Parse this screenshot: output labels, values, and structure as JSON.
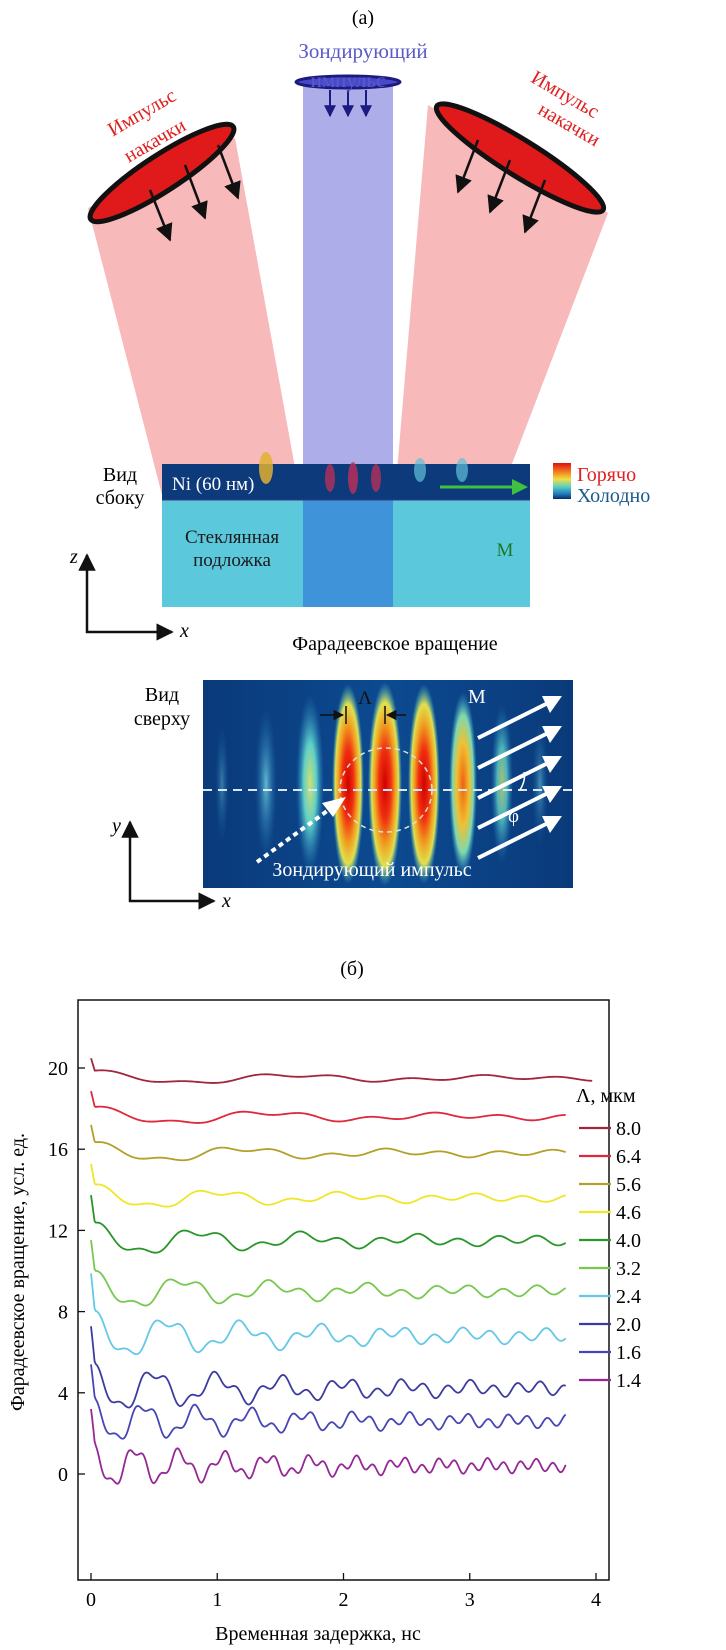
{
  "panel_a": {
    "label": "(а)",
    "probe_pulse": [
      "Зондирующий",
      "импульс"
    ],
    "pump_pulse": [
      "Импульс",
      "накачки"
    ],
    "side_view": [
      "Вид",
      "сбоку"
    ],
    "ni_layer": "Ni (60 нм)",
    "substrate": [
      "Стеклянная",
      "подложка"
    ],
    "m_label": "M",
    "legend_hot": "Горячо",
    "legend_cold": "Холодно",
    "axis_z": "z",
    "axis_x": "x",
    "faraday": "Фарадеевское вращение",
    "top_view": [
      "Вид",
      "сверху"
    ],
    "lambda": "Λ",
    "m_top": "M",
    "phi": "φ",
    "probe_bottom": "Зондирующий импульс",
    "axis_y": "y",
    "axis_x2": "x",
    "colors": {
      "pump": "#f08080",
      "probe": "#7070d0",
      "hot": "#ff2020",
      "cold": "#0a3a8a",
      "substrate": "#5cc8dc"
    }
  },
  "panel_b": {
    "label": "(б)",
    "ylabel": "Фарадеевское вращение, усл. ед.",
    "xlabel": "Временная задержка, нс",
    "legend_title": "Λ, мкм"
  },
  "chart_data": {
    "type": "line",
    "xlabel": "Временная задержка, нс",
    "ylabel": "Фарадеевское вращение, усл. ед.",
    "xlim": [
      0,
      4
    ],
    "ylim": [
      -3,
      23
    ],
    "x_ticks": [
      0,
      1,
      2,
      3,
      4
    ],
    "y_ticks": [
      0,
      4,
      8,
      12,
      16,
      20
    ],
    "legend_title": "Λ, мкм",
    "legend_position": "right",
    "grid": false,
    "series": [
      {
        "name": "8.0",
        "color": "#a0283c",
        "offset": 19.5,
        "amp": 0.35,
        "period": 1.6,
        "decay": 2.0
      },
      {
        "name": "6.4",
        "color": "#e0283c",
        "offset": 17.6,
        "amp": 0.45,
        "period": 1.4,
        "decay": 1.8
      },
      {
        "name": "5.6",
        "color": "#b4a028",
        "offset": 15.8,
        "amp": 0.5,
        "period": 1.2,
        "decay": 1.6
      },
      {
        "name": "4.6",
        "color": "#f0e628",
        "offset": 13.6,
        "amp": 0.6,
        "period": 1.0,
        "decay": 1.5
      },
      {
        "name": "4.0",
        "color": "#289628",
        "offset": 11.5,
        "amp": 0.8,
        "period": 0.85,
        "decay": 1.5
      },
      {
        "name": "3.2",
        "color": "#78c850",
        "offset": 9.0,
        "amp": 0.9,
        "period": 0.72,
        "decay": 1.5
      },
      {
        "name": "2.4",
        "color": "#64c8e6",
        "offset": 6.8,
        "amp": 1.1,
        "period": 0.6,
        "decay": 1.6
      },
      {
        "name": "2.0",
        "color": "#3c3ca0",
        "offset": 4.2,
        "amp": 1.1,
        "period": 0.5,
        "decay": 1.6
      },
      {
        "name": "1.6",
        "color": "#4646b4",
        "offset": 2.6,
        "amp": 1.0,
        "period": 0.42,
        "decay": 1.6
      },
      {
        "name": "1.4",
        "color": "#962896",
        "offset": 0.4,
        "amp": 1.0,
        "period": 0.35,
        "decay": 1.6
      }
    ]
  }
}
